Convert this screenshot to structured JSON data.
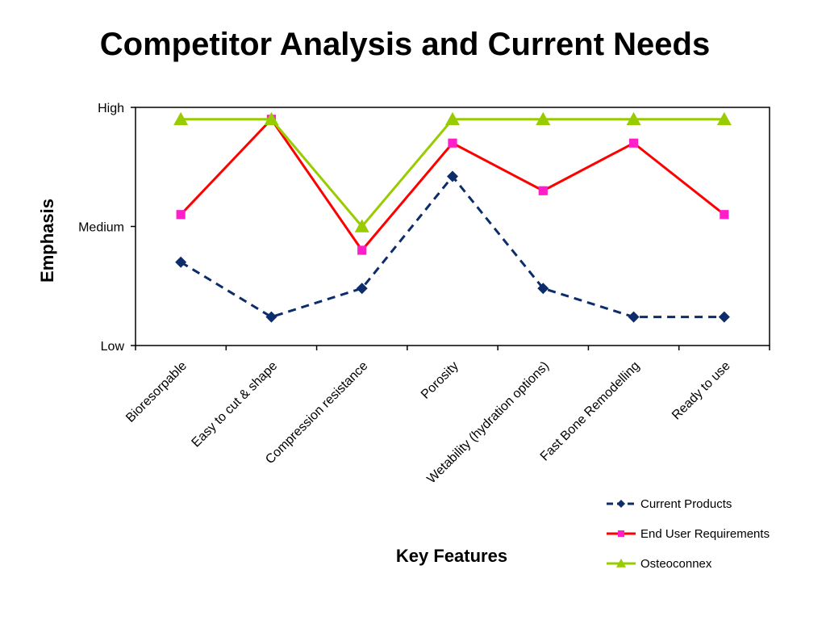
{
  "title": "Competitor Analysis and Current Needs",
  "chart_data": {
    "type": "line",
    "title": "Competitor Analysis and Current Needs",
    "xlabel": "Key Features",
    "ylabel": "Emphasis",
    "categories": [
      "Bioresorpable",
      "Easy to cut & shape",
      "Compression resistance",
      "Porosity",
      "Wetability (hydration options)",
      "Fast Bone Remodelling",
      "Ready to use"
    ],
    "y_tick_labels": [
      "Low",
      "Medium",
      "High"
    ],
    "ylim": [
      0,
      1
    ],
    "grid": false,
    "legend_position": "bottom-right",
    "series": [
      {
        "name": "Current Products",
        "color": "#0d2c6b",
        "marker": "diamond",
        "dash": "dashed",
        "values": [
          0.35,
          0.12,
          0.24,
          0.71,
          0.24,
          0.12,
          0.12
        ]
      },
      {
        "name": "End User Requirements",
        "color": "#ff0000",
        "marker": "square",
        "marker_color": "#ff1ec8",
        "dash": "solid",
        "values": [
          0.55,
          0.95,
          0.4,
          0.85,
          0.65,
          0.85,
          0.55
        ]
      },
      {
        "name": "Osteoconnex",
        "color": "#99cc00",
        "marker": "triangle",
        "dash": "solid",
        "values": [
          0.95,
          0.95,
          0.5,
          0.95,
          0.95,
          0.95,
          0.95
        ]
      }
    ]
  }
}
